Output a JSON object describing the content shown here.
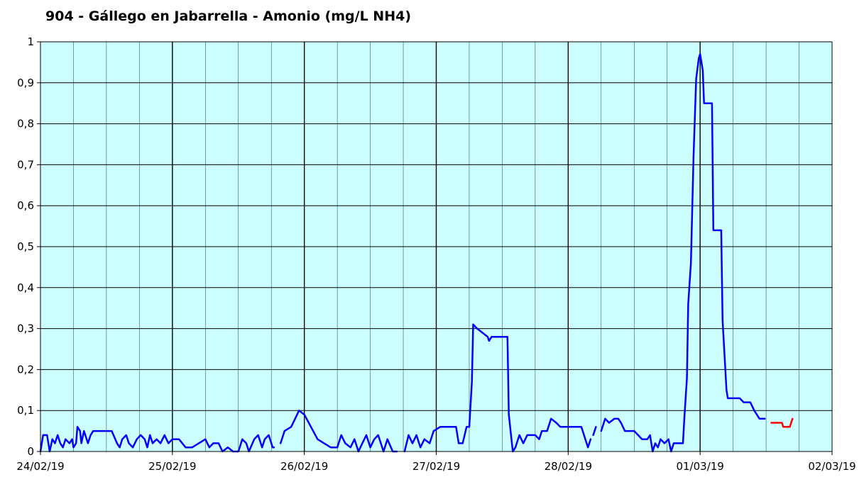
{
  "chart_data": {
    "type": "line",
    "title": "904 - Gállego en Jabarrella - Amonio (mg/L NH4)",
    "xlabel": "",
    "ylabel": "",
    "x_range_days": [
      0,
      6
    ],
    "x_tick_labels": [
      "24/02/19",
      "25/02/19",
      "26/02/19",
      "27/02/19",
      "28/02/19",
      "01/03/19",
      "02/03/19"
    ],
    "ylim": [
      0,
      1
    ],
    "y_ticks": [
      0,
      0.1,
      0.2,
      0.3,
      0.4,
      0.5,
      0.6,
      0.7,
      0.8,
      0.9,
      1
    ],
    "y_tick_labels": [
      "0",
      "0,1",
      "0,2",
      "0,3",
      "0,4",
      "0,5",
      "0,6",
      "0,7",
      "0,8",
      "0,9",
      "1"
    ],
    "grid": true,
    "background_color": "#ccffff",
    "grid_color": "#000000",
    "series": [
      {
        "color": "#0000ff",
        "segments": [
          [
            [
              0.0,
              0.0
            ],
            [
              0.02,
              0.04
            ],
            [
              0.05,
              0.04
            ],
            [
              0.07,
              0.0
            ],
            [
              0.09,
              0.03
            ],
            [
              0.11,
              0.02
            ],
            [
              0.13,
              0.04
            ],
            [
              0.15,
              0.02
            ],
            [
              0.17,
              0.01
            ],
            [
              0.19,
              0.03
            ],
            [
              0.22,
              0.02
            ],
            [
              0.24,
              0.03
            ],
            [
              0.25,
              0.01
            ],
            [
              0.27,
              0.02
            ],
            [
              0.28,
              0.06
            ],
            [
              0.3,
              0.05
            ],
            [
              0.31,
              0.02
            ],
            [
              0.33,
              0.05
            ],
            [
              0.36,
              0.02
            ],
            [
              0.38,
              0.04
            ],
            [
              0.4,
              0.05
            ],
            [
              0.5,
              0.05
            ],
            [
              0.54,
              0.05
            ],
            [
              0.58,
              0.02
            ],
            [
              0.6,
              0.01
            ],
            [
              0.62,
              0.03
            ],
            [
              0.65,
              0.04
            ],
            [
              0.67,
              0.02
            ],
            [
              0.7,
              0.01
            ],
            [
              0.73,
              0.03
            ],
            [
              0.76,
              0.04
            ],
            [
              0.79,
              0.03
            ],
            [
              0.81,
              0.01
            ],
            [
              0.83,
              0.04
            ],
            [
              0.85,
              0.02
            ],
            [
              0.88,
              0.03
            ],
            [
              0.91,
              0.02
            ],
            [
              0.94,
              0.04
            ],
            [
              0.97,
              0.02
            ],
            [
              1.0,
              0.03
            ],
            [
              1.05,
              0.03
            ],
            [
              1.1,
              0.01
            ],
            [
              1.15,
              0.01
            ],
            [
              1.2,
              0.02
            ],
            [
              1.25,
              0.03
            ],
            [
              1.28,
              0.01
            ],
            [
              1.31,
              0.02
            ],
            [
              1.35,
              0.02
            ],
            [
              1.38,
              0.0
            ],
            [
              1.42,
              0.01
            ],
            [
              1.46,
              0.0
            ],
            [
              1.5,
              0.0
            ],
            [
              1.53,
              0.03
            ],
            [
              1.56,
              0.02
            ],
            [
              1.58,
              0.0
            ],
            [
              1.62,
              0.03
            ],
            [
              1.65,
              0.04
            ],
            [
              1.68,
              0.01
            ],
            [
              1.7,
              0.03
            ],
            [
              1.73,
              0.04
            ],
            [
              1.76,
              0.01
            ],
            [
              1.77,
              0.01
            ]
          ],
          [
            [
              1.82,
              0.02
            ],
            [
              1.85,
              0.05
            ],
            [
              1.9,
              0.06
            ],
            [
              1.93,
              0.08
            ],
            [
              1.96,
              0.1
            ],
            [
              2.0,
              0.09
            ],
            [
              2.05,
              0.06
            ],
            [
              2.1,
              0.03
            ],
            [
              2.15,
              0.02
            ],
            [
              2.2,
              0.01
            ],
            [
              2.25,
              0.01
            ],
            [
              2.28,
              0.04
            ],
            [
              2.31,
              0.02
            ],
            [
              2.35,
              0.01
            ],
            [
              2.38,
              0.03
            ],
            [
              2.41,
              0.0
            ],
            [
              2.44,
              0.02
            ],
            [
              2.47,
              0.04
            ],
            [
              2.5,
              0.01
            ],
            [
              2.53,
              0.03
            ],
            [
              2.56,
              0.04
            ],
            [
              2.6,
              0.0
            ],
            [
              2.63,
              0.03
            ],
            [
              2.67,
              0.0
            ],
            [
              2.7,
              0.0
            ]
          ],
          [
            [
              2.76,
              0.0
            ],
            [
              2.79,
              0.04
            ],
            [
              2.82,
              0.02
            ],
            [
              2.85,
              0.04
            ],
            [
              2.88,
              0.01
            ],
            [
              2.91,
              0.03
            ],
            [
              2.95,
              0.02
            ],
            [
              2.98,
              0.05
            ],
            [
              3.03,
              0.06
            ],
            [
              3.1,
              0.06
            ],
            [
              3.15,
              0.06
            ],
            [
              3.17,
              0.02
            ],
            [
              3.2,
              0.02
            ],
            [
              3.23,
              0.06
            ],
            [
              3.25,
              0.06
            ],
            [
              3.27,
              0.17
            ],
            [
              3.28,
              0.31
            ],
            [
              3.31,
              0.3
            ],
            [
              3.35,
              0.29
            ],
            [
              3.39,
              0.28
            ],
            [
              3.4,
              0.27
            ],
            [
              3.42,
              0.28
            ],
            [
              3.5,
              0.28
            ],
            [
              3.54,
              0.28
            ],
            [
              3.55,
              0.09
            ],
            [
              3.58,
              0.0
            ],
            [
              3.6,
              0.01
            ],
            [
              3.63,
              0.04
            ],
            [
              3.66,
              0.02
            ],
            [
              3.69,
              0.04
            ],
            [
              3.72,
              0.04
            ],
            [
              3.75,
              0.04
            ],
            [
              3.78,
              0.03
            ],
            [
              3.8,
              0.05
            ],
            [
              3.84,
              0.05
            ],
            [
              3.87,
              0.08
            ],
            [
              3.91,
              0.07
            ],
            [
              3.94,
              0.06
            ],
            [
              4.0,
              0.06
            ],
            [
              4.05,
              0.06
            ],
            [
              4.1,
              0.06
            ],
            [
              4.13,
              0.03
            ],
            [
              4.15,
              0.01
            ],
            [
              4.17,
              0.03
            ]
          ],
          [
            [
              4.19,
              0.04
            ],
            [
              4.21,
              0.06
            ]
          ],
          [
            [
              4.25,
              0.05
            ],
            [
              4.28,
              0.08
            ],
            [
              4.31,
              0.07
            ],
            [
              4.35,
              0.08
            ],
            [
              4.38,
              0.08
            ],
            [
              4.4,
              0.07
            ],
            [
              4.43,
              0.05
            ],
            [
              4.46,
              0.05
            ],
            [
              4.5,
              0.05
            ],
            [
              4.53,
              0.04
            ],
            [
              4.56,
              0.03
            ],
            [
              4.6,
              0.03
            ],
            [
              4.62,
              0.04
            ],
            [
              4.64,
              0.0
            ],
            [
              4.66,
              0.02
            ],
            [
              4.68,
              0.01
            ],
            [
              4.7,
              0.03
            ],
            [
              4.73,
              0.02
            ],
            [
              4.76,
              0.03
            ],
            [
              4.78,
              0.0
            ],
            [
              4.8,
              0.02
            ],
            [
              4.83,
              0.02
            ],
            [
              4.87,
              0.02
            ],
            [
              4.88,
              0.08
            ],
            [
              4.9,
              0.18
            ],
            [
              4.91,
              0.36
            ],
            [
              4.93,
              0.46
            ],
            [
              4.95,
              0.72
            ],
            [
              4.97,
              0.91
            ],
            [
              4.99,
              0.96
            ],
            [
              5.0,
              0.97
            ],
            [
              5.02,
              0.93
            ],
            [
              5.03,
              0.85
            ],
            [
              5.05,
              0.85
            ],
            [
              5.09,
              0.85
            ],
            [
              5.1,
              0.54
            ],
            [
              5.12,
              0.54
            ],
            [
              5.16,
              0.54
            ],
            [
              5.17,
              0.32
            ],
            [
              5.2,
              0.15
            ],
            [
              5.21,
              0.13
            ],
            [
              5.27,
              0.13
            ],
            [
              5.3,
              0.13
            ],
            [
              5.33,
              0.12
            ],
            [
              5.38,
              0.12
            ],
            [
              5.41,
              0.1
            ],
            [
              5.43,
              0.09
            ],
            [
              5.45,
              0.08
            ],
            [
              5.49,
              0.08
            ]
          ]
        ]
      },
      {
        "color": "#ff0000",
        "segments": [
          [
            [
              5.54,
              0.07
            ],
            [
              5.62,
              0.07
            ],
            [
              5.63,
              0.06
            ],
            [
              5.68,
              0.06
            ],
            [
              5.69,
              0.07
            ],
            [
              5.7,
              0.08
            ]
          ]
        ]
      }
    ]
  }
}
